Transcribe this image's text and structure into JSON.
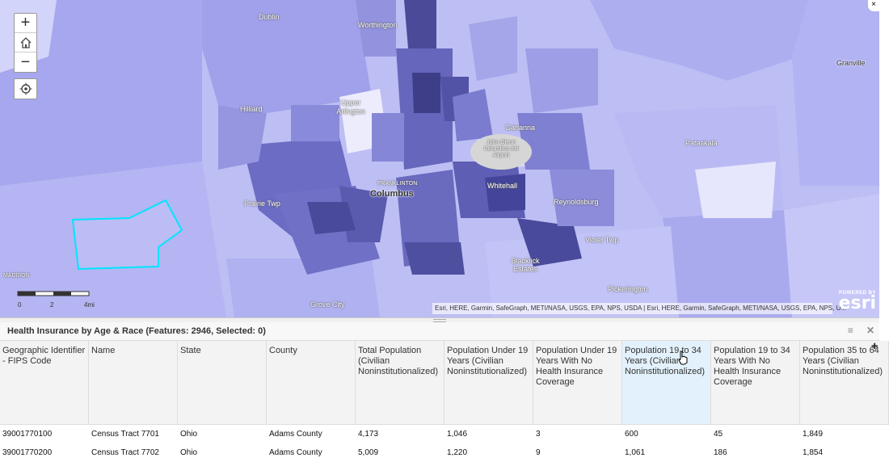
{
  "map": {
    "zoom_in": "+",
    "zoom_out": "−",
    "places": [
      {
        "name": "Dublin",
        "style": "plain"
      },
      {
        "name": "Worthington",
        "style": "plain"
      },
      {
        "name": "Hilliard",
        "style": "plain"
      },
      {
        "name": "Upper Arlington",
        "style": "plain"
      },
      {
        "name": "Gahanna",
        "style": "plain"
      },
      {
        "name": "John Glenn Columbus Intl Airport",
        "style": "plain"
      },
      {
        "name": "Columbus",
        "style": "big"
      },
      {
        "name": "FRANKLINTON",
        "style": "plain"
      },
      {
        "name": "Prairie Twp",
        "style": "plain"
      },
      {
        "name": "Whitehall",
        "style": "plain"
      },
      {
        "name": "Reynoldsburg",
        "style": "plain"
      },
      {
        "name": "Pataskala",
        "style": "plain"
      },
      {
        "name": "Granville",
        "style": "dark"
      },
      {
        "name": "Violet Twp",
        "style": "plain"
      },
      {
        "name": "Blacklick Estates",
        "style": "plain"
      },
      {
        "name": "Pickerington",
        "style": "plain"
      },
      {
        "name": "Grove City",
        "style": "plain"
      },
      {
        "name": "MADISON",
        "style": "plain"
      }
    ],
    "scale": {
      "ticks": [
        "0",
        "2",
        "4mi"
      ]
    },
    "attribution": "Esri, HERE, Garmin, SafeGraph, METI/NASA, USGS, EPA, NPS, USDA | Esri, HERE, Garmin, SafeGraph, METI/NASA, USGS, EPA, NPS, U...",
    "powered_by": "POWERED BY",
    "esri": "esri",
    "colors": {
      "light": "#c9caf8",
      "mid": "#9a9ae6",
      "dark": "#5a5ab0",
      "darkest": "#3e3e88",
      "highlight": "#00e5ff"
    }
  },
  "table": {
    "title": "Health Insurance by Age & Race (Features: 2946, Selected: 0)",
    "menu_icon": "≡",
    "close_icon": "✕",
    "columns": [
      "Geographic Identifier - FIPS Code",
      "Name",
      "State",
      "County",
      "Total Population (Civilian Noninstitutionalized)",
      "Population Under 19 Years (Civilian Noninstitutionalized)",
      "Population Under 19 Years With No Health Insurance Coverage",
      "Population 19 to 34 Years (Civilian Noninstitutionalized)",
      "Population 19 to 34 Years With No Health Insurance Coverage",
      "Population 35 to 64 Years (Civilian Noninstitutionalized)"
    ],
    "rows": [
      [
        "39001770100",
        "Census Tract 7701",
        "Ohio",
        "Adams County",
        "4,173",
        "1,046",
        "3",
        "600",
        "45",
        "1,849"
      ],
      [
        "39001770200",
        "Census Tract 7702",
        "Ohio",
        "Adams County",
        "5,009",
        "1,220",
        "9",
        "1,061",
        "186",
        "1,854"
      ]
    ]
  }
}
